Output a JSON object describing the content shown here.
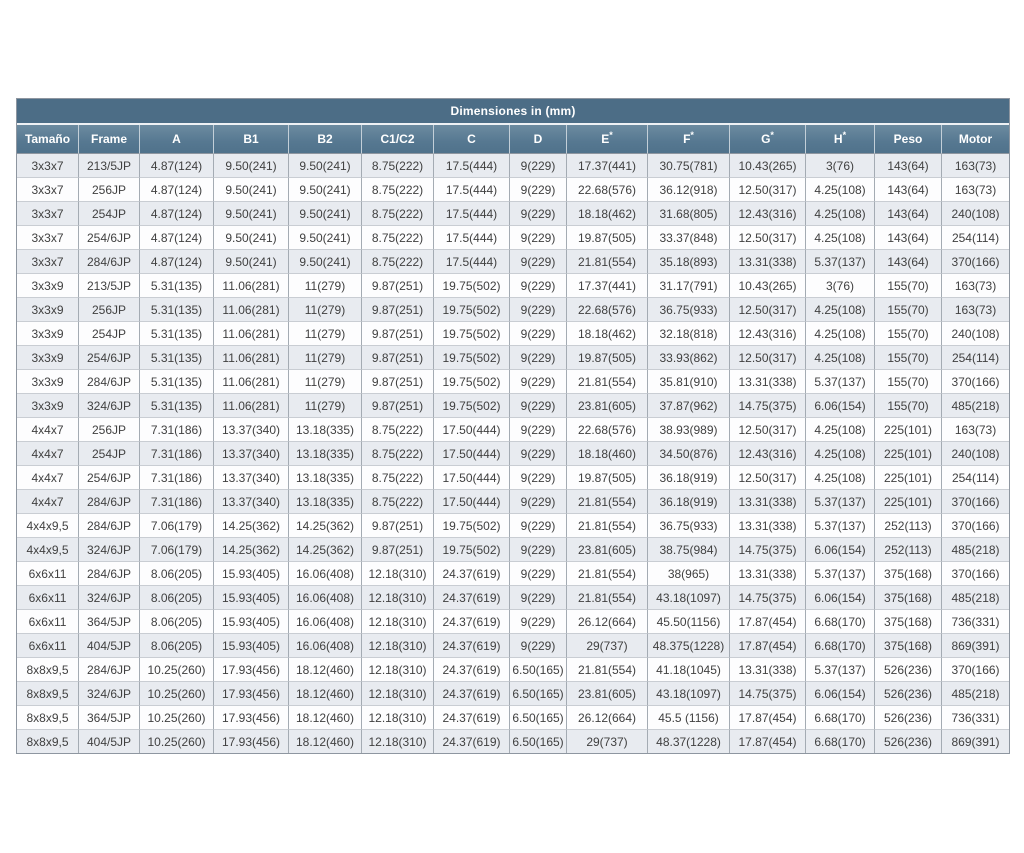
{
  "page": {
    "background_color": "#ffffff"
  },
  "chart_data": {
    "type": "table",
    "title": "Dimensiones in (mm)",
    "columns": [
      "Tamaño",
      "Frame",
      "A",
      "B1",
      "B2",
      "C1/C2",
      "C",
      "D",
      "E*",
      "F*",
      "G*",
      "H*",
      "Peso",
      "Motor"
    ],
    "rows": [
      [
        "3x3x7",
        "213/5JP",
        "4.87(124)",
        "9.50(241)",
        "9.50(241)",
        "8.75(222)",
        "17.5(444)",
        "9(229)",
        "17.37(441)",
        "30.75(781)",
        "10.43(265)",
        "3(76)",
        "143(64)",
        "163(73)"
      ],
      [
        "3x3x7",
        "256JP",
        "4.87(124)",
        "9.50(241)",
        "9.50(241)",
        "8.75(222)",
        "17.5(444)",
        "9(229)",
        "22.68(576)",
        "36.12(918)",
        "12.50(317)",
        "4.25(108)",
        "143(64)",
        "163(73)"
      ],
      [
        "3x3x7",
        "254JP",
        "4.87(124)",
        "9.50(241)",
        "9.50(241)",
        "8.75(222)",
        "17.5(444)",
        "9(229)",
        "18.18(462)",
        "31.68(805)",
        "12.43(316)",
        "4.25(108)",
        "143(64)",
        "240(108)"
      ],
      [
        "3x3x7",
        "254/6JP",
        "4.87(124)",
        "9.50(241)",
        "9.50(241)",
        "8.75(222)",
        "17.5(444)",
        "9(229)",
        "19.87(505)",
        "33.37(848)",
        "12.50(317)",
        "4.25(108)",
        "143(64)",
        "254(114)"
      ],
      [
        "3x3x7",
        "284/6JP",
        "4.87(124)",
        "9.50(241)",
        "9.50(241)",
        "8.75(222)",
        "17.5(444)",
        "9(229)",
        "21.81(554)",
        "35.18(893)",
        "13.31(338)",
        "5.37(137)",
        "143(64)",
        "370(166)"
      ],
      [
        "3x3x9",
        "213/5JP",
        "5.31(135)",
        "11.06(281)",
        "11(279)",
        "9.87(251)",
        "19.75(502)",
        "9(229)",
        "17.37(441)",
        "31.17(791)",
        "10.43(265)",
        "3(76)",
        "155(70)",
        "163(73)"
      ],
      [
        "3x3x9",
        "256JP",
        "5.31(135)",
        "11.06(281)",
        "11(279)",
        "9.87(251)",
        "19.75(502)",
        "9(229)",
        "22.68(576)",
        "36.75(933)",
        "12.50(317)",
        "4.25(108)",
        "155(70)",
        "163(73)"
      ],
      [
        "3x3x9",
        "254JP",
        "5.31(135)",
        "11.06(281)",
        "11(279)",
        "9.87(251)",
        "19.75(502)",
        "9(229)",
        "18.18(462)",
        "32.18(818)",
        "12.43(316)",
        "4.25(108)",
        "155(70)",
        "240(108)"
      ],
      [
        "3x3x9",
        "254/6JP",
        "5.31(135)",
        "11.06(281)",
        "11(279)",
        "9.87(251)",
        "19.75(502)",
        "9(229)",
        "19.87(505)",
        "33.93(862)",
        "12.50(317)",
        "4.25(108)",
        "155(70)",
        "254(114)"
      ],
      [
        "3x3x9",
        "284/6JP",
        "5.31(135)",
        "11.06(281)",
        "11(279)",
        "9.87(251)",
        "19.75(502)",
        "9(229)",
        "21.81(554)",
        "35.81(910)",
        "13.31(338)",
        "5.37(137)",
        "155(70)",
        "370(166)"
      ],
      [
        "3x3x9",
        "324/6JP",
        "5.31(135)",
        "11.06(281)",
        "11(279)",
        "9.87(251)",
        "19.75(502)",
        "9(229)",
        "23.81(605)",
        "37.87(962)",
        "14.75(375)",
        "6.06(154)",
        "155(70)",
        "485(218)"
      ],
      [
        "4x4x7",
        "256JP",
        "7.31(186)",
        "13.37(340)",
        "13.18(335)",
        "8.75(222)",
        "17.50(444)",
        "9(229)",
        "22.68(576)",
        "38.93(989)",
        "12.50(317)",
        "4.25(108)",
        "225(101)",
        "163(73)"
      ],
      [
        "4x4x7",
        "254JP",
        "7.31(186)",
        "13.37(340)",
        "13.18(335)",
        "8.75(222)",
        "17.50(444)",
        "9(229)",
        "18.18(460)",
        "34.50(876)",
        "12.43(316)",
        "4.25(108)",
        "225(101)",
        "240(108)"
      ],
      [
        "4x4x7",
        "254/6JP",
        "7.31(186)",
        "13.37(340)",
        "13.18(335)",
        "8.75(222)",
        "17.50(444)",
        "9(229)",
        "19.87(505)",
        "36.18(919)",
        "12.50(317)",
        "4.25(108)",
        "225(101)",
        "254(114)"
      ],
      [
        "4x4x7",
        "284/6JP",
        "7.31(186)",
        "13.37(340)",
        "13.18(335)",
        "8.75(222)",
        "17.50(444)",
        "9(229)",
        "21.81(554)",
        "36.18(919)",
        "13.31(338)",
        "5.37(137)",
        "225(101)",
        "370(166)"
      ],
      [
        "4x4x9,5",
        "284/6JP",
        "7.06(179)",
        "14.25(362)",
        "14.25(362)",
        "9.87(251)",
        "19.75(502)",
        "9(229)",
        "21.81(554)",
        "36.75(933)",
        "13.31(338)",
        "5.37(137)",
        "252(113)",
        "370(166)"
      ],
      [
        "4x4x9,5",
        "324/6JP",
        "7.06(179)",
        "14.25(362)",
        "14.25(362)",
        "9.87(251)",
        "19.75(502)",
        "9(229)",
        "23.81(605)",
        "38.75(984)",
        "14.75(375)",
        "6.06(154)",
        "252(113)",
        "485(218)"
      ],
      [
        "6x6x11",
        "284/6JP",
        "8.06(205)",
        "15.93(405)",
        "16.06(408)",
        "12.18(310)",
        "24.37(619)",
        "9(229)",
        "21.81(554)",
        "38(965)",
        "13.31(338)",
        "5.37(137)",
        "375(168)",
        "370(166)"
      ],
      [
        "6x6x11",
        "324/6JP",
        "8.06(205)",
        "15.93(405)",
        "16.06(408)",
        "12.18(310)",
        "24.37(619)",
        "9(229)",
        "21.81(554)",
        "43.18(1097)",
        "14.75(375)",
        "6.06(154)",
        "375(168)",
        "485(218)"
      ],
      [
        "6x6x11",
        "364/5JP",
        "8.06(205)",
        "15.93(405)",
        "16.06(408)",
        "12.18(310)",
        "24.37(619)",
        "9(229)",
        "26.12(664)",
        "45.50(1156)",
        "17.87(454)",
        "6.68(170)",
        "375(168)",
        "736(331)"
      ],
      [
        "6x6x11",
        "404/5JP",
        "8.06(205)",
        "15.93(405)",
        "16.06(408)",
        "12.18(310)",
        "24.37(619)",
        "9(229)",
        "29(737)",
        "48.375(1228)",
        "17.87(454)",
        "6.68(170)",
        "375(168)",
        "869(391)"
      ],
      [
        "8x8x9,5",
        "284/6JP",
        "10.25(260)",
        "17.93(456)",
        "18.12(460)",
        "12.18(310)",
        "24.37(619)",
        "6.50(165)",
        "21.81(554)",
        "41.18(1045)",
        "13.31(338)",
        "5.37(137)",
        "526(236)",
        "370(166)"
      ],
      [
        "8x8x9,5",
        "324/6JP",
        "10.25(260)",
        "17.93(456)",
        "18.12(460)",
        "12.18(310)",
        "24.37(619)",
        "6.50(165)",
        "23.81(605)",
        "43.18(1097)",
        "14.75(375)",
        "6.06(154)",
        "526(236)",
        "485(218)"
      ],
      [
        "8x8x9,5",
        "364/5JP",
        "10.25(260)",
        "17.93(456)",
        "18.12(460)",
        "12.18(310)",
        "24.37(619)",
        "6.50(165)",
        "26.12(664)",
        "45.5 (1156)",
        "17.87(454)",
        "6.68(170)",
        "526(236)",
        "736(331)"
      ],
      [
        "8x8x9,5",
        "404/5JP",
        "10.25(260)",
        "17.93(456)",
        "18.12(460)",
        "12.18(310)",
        "24.37(619)",
        "6.50(165)",
        "29(737)",
        "48.37(1228)",
        "17.87(454)",
        "6.68(170)",
        "526(236)",
        "869(391)"
      ]
    ],
    "layout": {
      "legend_position": "none",
      "grid": true,
      "striped_rows": true,
      "title_band_color": "#4c6d86",
      "header_color": "#567891",
      "header_text_color": "#ffffff",
      "odd_row_color": "#e8ebf0",
      "even_row_color": "#ffffff",
      "body_text_color": "#404040",
      "border_color": "#8e96a0"
    }
  }
}
